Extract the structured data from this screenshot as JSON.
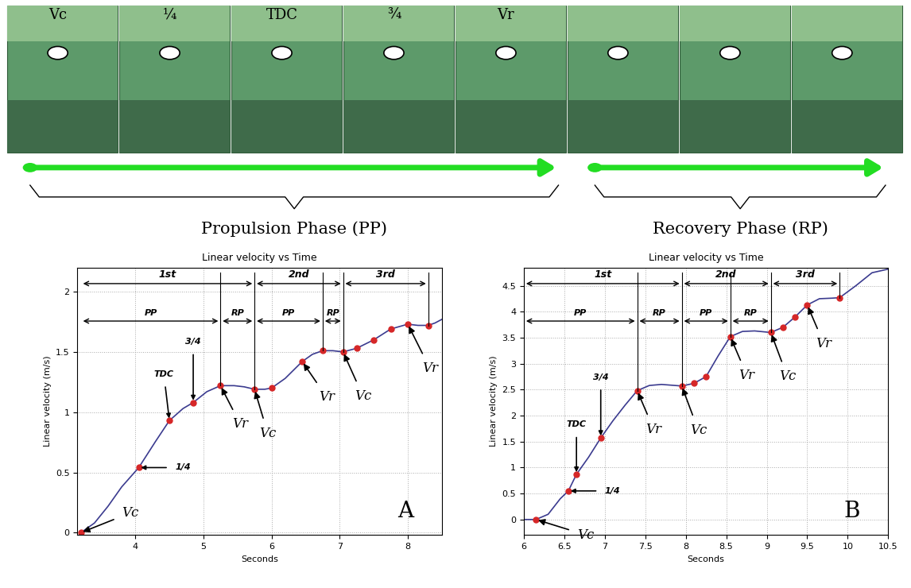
{
  "strip": {
    "frame_labels": [
      "Vc",
      "¼",
      "TDC",
      "¾",
      "Vr",
      null,
      null,
      null
    ],
    "phases": [
      "Propulsion Phase (PP)",
      "Recovery Phase (RP)"
    ]
  },
  "chart_data": [
    {
      "type": "line",
      "title": "Linear velocity vs Time",
      "xlabel": "Seconds",
      "ylabel": "Linear velocity (m/s)",
      "panel": "A",
      "color": "#3b3b8f",
      "marker_color": "#d62728",
      "grid": true,
      "x": [
        3.2,
        3.4,
        3.6,
        3.8,
        4.05,
        4.3,
        4.5,
        4.7,
        4.85,
        5.05,
        5.25,
        5.45,
        5.6,
        5.75,
        5.9,
        6.0,
        6.2,
        6.45,
        6.6,
        6.75,
        6.9,
        7.05,
        7.25,
        7.5,
        7.75,
        8.0,
        8.15,
        8.3,
        8.4,
        8.5
      ],
      "values": [
        0,
        0.08,
        0.22,
        0.38,
        0.54,
        0.76,
        0.93,
        1.03,
        1.08,
        1.17,
        1.22,
        1.22,
        1.21,
        1.19,
        1.19,
        1.2,
        1.28,
        1.42,
        1.48,
        1.51,
        1.51,
        1.5,
        1.53,
        1.6,
        1.69,
        1.73,
        1.72,
        1.72,
        1.74,
        1.77
      ],
      "markers": {
        "x": [
          3.2,
          4.05,
          4.5,
          4.85,
          5.25,
          5.75,
          6.0,
          6.45,
          6.75,
          7.05,
          7.25,
          7.5,
          7.75,
          8.0,
          8.3
        ],
        "values": [
          0,
          0.54,
          0.93,
          1.08,
          1.22,
          1.19,
          1.2,
          1.42,
          1.51,
          1.5,
          1.53,
          1.6,
          1.69,
          1.73,
          1.72
        ]
      },
      "xlim": [
        3.15,
        8.5
      ],
      "ylim": [
        -0.02,
        2.2
      ],
      "xticks": [
        4,
        5,
        6,
        7,
        8
      ],
      "yticks": [
        0,
        0.5,
        1,
        1.5,
        2
      ],
      "cycles": [
        {
          "label": "1st",
          "start": 3.2,
          "end": 5.75
        },
        {
          "label": "2nd",
          "start": 5.75,
          "end": 7.05
        },
        {
          "label": "3rd",
          "start": 7.05,
          "end": 8.3
        }
      ],
      "phases": [
        {
          "label": "PP",
          "start": 3.2,
          "end": 5.25
        },
        {
          "label": "RP",
          "start": 5.25,
          "end": 5.75
        },
        {
          "label": "PP",
          "start": 5.75,
          "end": 6.75
        },
        {
          "label": "RP",
          "start": 6.75,
          "end": 7.05
        }
      ],
      "annotations": [
        {
          "text": "Vc",
          "x": 3.2,
          "y": 0
        },
        {
          "text": "1/4",
          "x": 4.05,
          "y": 0.54
        },
        {
          "text": "TDC",
          "x": 4.5,
          "y": 0.93
        },
        {
          "text": "3/4",
          "x": 4.85,
          "y": 1.08
        },
        {
          "text": "Vr",
          "x": 5.25,
          "y": 1.22
        },
        {
          "text": "Vc",
          "x": 5.75,
          "y": 1.19
        },
        {
          "text": "Vr",
          "x": 6.45,
          "y": 1.42
        },
        {
          "text": "Vc",
          "x": 7.05,
          "y": 1.5
        },
        {
          "text": "Vr",
          "x": 8.0,
          "y": 1.73
        }
      ]
    },
    {
      "type": "line",
      "title": "Linear velocity vs Time",
      "xlabel": "Seconds",
      "ylabel": "Linear velocity (m/s)",
      "panel": "B",
      "color": "#3b3b8f",
      "marker_color": "#d62728",
      "grid": true,
      "x": [
        6.0,
        6.15,
        6.3,
        6.45,
        6.55,
        6.65,
        6.8,
        6.95,
        7.1,
        7.25,
        7.4,
        7.55,
        7.7,
        7.95,
        8.1,
        8.25,
        8.4,
        8.55,
        8.7,
        8.85,
        9.05,
        9.2,
        9.35,
        9.5,
        9.65,
        9.8,
        9.9,
        10.1,
        10.3,
        10.5
      ],
      "values": [
        0,
        0,
        0.1,
        0.4,
        0.55,
        0.87,
        1.2,
        1.57,
        1.9,
        2.2,
        2.48,
        2.58,
        2.6,
        2.57,
        2.62,
        2.75,
        3.15,
        3.52,
        3.62,
        3.63,
        3.6,
        3.7,
        3.9,
        4.13,
        4.25,
        4.26,
        4.27,
        4.5,
        4.75,
        4.82
      ],
      "markers": {
        "x": [
          6.15,
          6.55,
          6.65,
          6.95,
          7.4,
          7.95,
          8.1,
          8.25,
          8.55,
          9.05,
          9.2,
          9.35,
          9.5,
          9.9
        ],
        "values": [
          0,
          0.55,
          0.87,
          1.57,
          2.48,
          2.57,
          2.62,
          2.75,
          3.52,
          3.6,
          3.7,
          3.9,
          4.13,
          4.27
        ]
      },
      "xlim": [
        6.0,
        10.5
      ],
      "ylim": [
        -0.3,
        4.85
      ],
      "xticks": [
        6,
        6.5,
        7,
        7.5,
        8,
        8.5,
        9,
        9.5,
        10,
        10.5
      ],
      "yticks": [
        0,
        0.5,
        1,
        1.5,
        2,
        2.5,
        3,
        3.5,
        4,
        4.5
      ],
      "cycles": [
        {
          "label": "1st",
          "start": 6.0,
          "end": 7.95
        },
        {
          "label": "2nd",
          "start": 7.95,
          "end": 9.05
        },
        {
          "label": "3rd",
          "start": 9.05,
          "end": 9.9
        }
      ],
      "phases": [
        {
          "label": "PP",
          "start": 6.0,
          "end": 7.4
        },
        {
          "label": "RP",
          "start": 7.4,
          "end": 7.95
        },
        {
          "label": "PP",
          "start": 7.95,
          "end": 8.55
        },
        {
          "label": "RP",
          "start": 8.55,
          "end": 9.05
        }
      ],
      "annotations": [
        {
          "text": "Vc",
          "x": 6.15,
          "y": 0
        },
        {
          "text": "1/4",
          "x": 6.55,
          "y": 0.55
        },
        {
          "text": "TDC",
          "x": 6.65,
          "y": 0.87
        },
        {
          "text": "3/4",
          "x": 6.95,
          "y": 1.57
        },
        {
          "text": "Vr",
          "x": 7.4,
          "y": 2.48
        },
        {
          "text": "Vc",
          "x": 7.95,
          "y": 2.57
        },
        {
          "text": "Vr",
          "x": 8.55,
          "y": 3.52
        },
        {
          "text": "Vc",
          "x": 9.05,
          "y": 3.6
        },
        {
          "text": "Vr",
          "x": 9.5,
          "y": 4.13
        }
      ]
    }
  ]
}
